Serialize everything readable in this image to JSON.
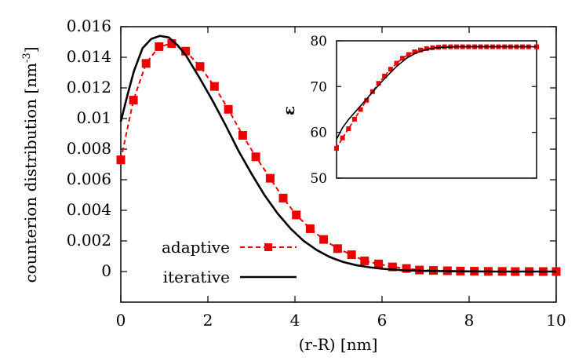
{
  "chart_data": [
    {
      "type": "line",
      "xlabel": "(r-R) [nm]",
      "ylabel_main": "counterion distribution [nm",
      "ylabel_exp": "-3",
      "ylabel_close": "]",
      "xlim": [
        0,
        10
      ],
      "ylim": [
        -0.002,
        0.016
      ],
      "xticks": [
        {
          "value": 0,
          "label": "0"
        },
        {
          "value": 2,
          "label": "2"
        },
        {
          "value": 4,
          "label": "4"
        },
        {
          "value": 6,
          "label": "6"
        },
        {
          "value": 8,
          "label": "8"
        },
        {
          "value": 10,
          "label": "10"
        }
      ],
      "yticks": [
        {
          "value": 0,
          "label": "0"
        },
        {
          "value": 0.002,
          "label": "0.002"
        },
        {
          "value": 0.004,
          "label": "0.004"
        },
        {
          "value": 0.006,
          "label": "0.006"
        },
        {
          "value": 0.008,
          "label": "0.008"
        },
        {
          "value": 0.01,
          "label": "0.01"
        },
        {
          "value": 0.012,
          "label": "0.012"
        },
        {
          "value": 0.014,
          "label": "0.014"
        },
        {
          "value": 0.016,
          "label": "0.016"
        }
      ],
      "legend_position": "bottom-left",
      "series": [
        {
          "name": "adaptive",
          "style": "dashed-squares",
          "color": "#ee0000",
          "x": [
            0,
            0.29,
            0.58,
            0.88,
            1.17,
            1.49,
            1.82,
            2.15,
            2.47,
            2.8,
            3.1,
            3.43,
            3.73,
            4.03,
            4.35,
            4.66,
            4.98,
            5.3,
            5.6,
            5.92,
            6.24,
            6.56,
            6.86,
            7.18,
            7.5,
            7.8,
            8.12,
            8.44,
            8.76,
            9.06,
            9.38,
            9.7,
            10
          ],
          "values": [
            0.0073,
            0.0112,
            0.0136,
            0.0147,
            0.0149,
            0.0144,
            0.0134,
            0.0121,
            0.0106,
            0.0089,
            0.0075,
            0.0061,
            0.0048,
            0.0037,
            0.0028,
            0.0021,
            0.0015,
            0.0011,
            0.0007,
            0.0005,
            0.0003,
            0.0002,
            0.0001,
            7e-05,
            5e-05,
            3e-05,
            2e-05,
            1e-05,
            1e-05,
            0.0,
            0.0,
            0.0,
            0.0
          ]
        },
        {
          "name": "iterative",
          "style": "solid",
          "color": "#000000",
          "x": [
            0,
            0.15,
            0.3,
            0.5,
            0.7,
            0.9,
            1.1,
            1.3,
            1.5,
            1.8,
            2.1,
            2.4,
            2.7,
            3.0,
            3.3,
            3.6,
            3.9,
            4.2,
            4.5,
            4.8,
            5.1,
            5.4,
            5.7,
            6.0,
            6.5,
            7.0,
            7.5,
            8.0,
            8.5,
            9.0,
            9.5,
            10
          ],
          "values": [
            0.0098,
            0.0115,
            0.0131,
            0.0146,
            0.0152,
            0.0154,
            0.0153,
            0.0148,
            0.0141,
            0.0127,
            0.0112,
            0.0096,
            0.0079,
            0.0064,
            0.005,
            0.0038,
            0.0028,
            0.002,
            0.0014,
            0.00095,
            0.00063,
            0.00042,
            0.00028,
            0.00018,
            8e-05,
            4e-05,
            2e-05,
            1e-05,
            0.0,
            0.0,
            0.0,
            0.0
          ]
        }
      ]
    },
    {
      "type": "line",
      "ylabel": "ε",
      "xlim": [
        0,
        10
      ],
      "ylim": [
        50,
        80
      ],
      "yticks": [
        {
          "value": 50,
          "label": "50"
        },
        {
          "value": 60,
          "label": "60"
        },
        {
          "value": 70,
          "label": "70"
        },
        {
          "value": 80,
          "label": "80"
        }
      ],
      "series": [
        {
          "style": "dashed-squares",
          "color": "#ee0000",
          "x": [
            0,
            0.3,
            0.6,
            0.9,
            1.2,
            1.5,
            1.8,
            2.1,
            2.4,
            2.7,
            3.0,
            3.3,
            3.6,
            3.9,
            4.2,
            4.5,
            4.8,
            5.1,
            5.4,
            5.7,
            6.0,
            6.3,
            6.6,
            6.9,
            7.2,
            7.5,
            7.8,
            8.1,
            8.4,
            8.7,
            9.0,
            9.3,
            9.6,
            10
          ],
          "values": [
            56.5,
            58.8,
            60.8,
            62.9,
            65.0,
            67.0,
            68.9,
            70.7,
            72.3,
            73.8,
            75.1,
            76.2,
            77.0,
            77.6,
            78.0,
            78.3,
            78.5,
            78.6,
            78.7,
            78.7,
            78.7,
            78.7,
            78.7,
            78.7,
            78.7,
            78.7,
            78.7,
            78.7,
            78.7,
            78.7,
            78.7,
            78.7,
            78.7,
            78.7
          ]
        },
        {
          "style": "solid",
          "color": "#000000",
          "x": [
            0,
            0.3,
            0.6,
            1.0,
            1.5,
            2.0,
            2.5,
            3.0,
            3.5,
            4.0,
            4.5,
            5.0,
            6.0,
            7.0,
            8.0,
            9.0,
            10
          ],
          "values": [
            58.5,
            61.0,
            62.8,
            64.8,
            67.3,
            69.8,
            72.2,
            74.4,
            76.2,
            77.4,
            78.1,
            78.5,
            78.7,
            78.7,
            78.7,
            78.7,
            78.7
          ]
        }
      ]
    }
  ]
}
